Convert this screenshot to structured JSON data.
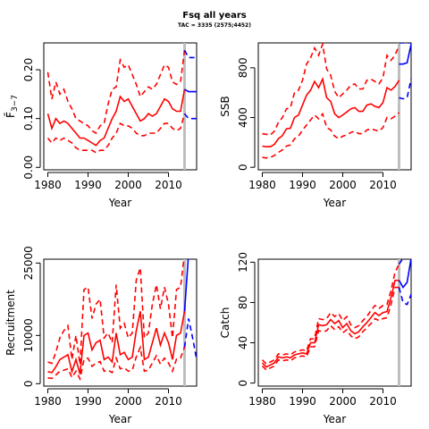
{
  "figure": {
    "title": "Fsq all years",
    "subtitle": "TAC = 3335 (2575;4452)"
  },
  "colors": {
    "history": "#ff0000",
    "forecast": "#0000ff",
    "divider": "#bebebe"
  },
  "chart_data": [
    {
      "type": "line",
      "id": "fbar",
      "xlabel": "Year",
      "ylabel": "F̄",
      "ylabel_sub": "3−7",
      "xlim": [
        1979,
        2017
      ],
      "ylim": [
        -0.005,
        0.255
      ],
      "xticks": [
        1980,
        1990,
        2000,
        2010
      ],
      "yticks": [
        0.0,
        0.1,
        0.2
      ],
      "ytick_labels": [
        "0.00",
        "0.10",
        "0.20"
      ],
      "divider_x": 2014,
      "history": {
        "x": [
          1980,
          1981,
          1982,
          1983,
          1984,
          1985,
          1986,
          1987,
          1988,
          1989,
          1990,
          1991,
          1992,
          1993,
          1994,
          1995,
          1996,
          1997,
          1998,
          1999,
          2000,
          2001,
          2002,
          2003,
          2004,
          2005,
          2006,
          2007,
          2008,
          2009,
          2010,
          2011,
          2012,
          2013,
          2014
        ],
        "median": [
          0.11,
          0.08,
          0.1,
          0.09,
          0.095,
          0.09,
          0.08,
          0.07,
          0.06,
          0.06,
          0.055,
          0.05,
          0.045,
          0.055,
          0.06,
          0.08,
          0.1,
          0.115,
          0.145,
          0.135,
          0.14,
          0.125,
          0.11,
          0.095,
          0.1,
          0.11,
          0.105,
          0.11,
          0.125,
          0.14,
          0.135,
          0.12,
          0.115,
          0.115,
          0.16
        ],
        "lower": [
          0.06,
          0.05,
          0.06,
          0.055,
          0.06,
          0.055,
          0.05,
          0.04,
          0.035,
          0.035,
          0.035,
          0.035,
          0.03,
          0.035,
          0.035,
          0.045,
          0.06,
          0.07,
          0.09,
          0.085,
          0.085,
          0.08,
          0.07,
          0.065,
          0.065,
          0.07,
          0.07,
          0.07,
          0.08,
          0.09,
          0.09,
          0.08,
          0.075,
          0.08,
          0.11
        ],
        "upper": [
          0.195,
          0.14,
          0.175,
          0.15,
          0.16,
          0.135,
          0.12,
          0.1,
          0.095,
          0.09,
          0.085,
          0.075,
          0.07,
          0.085,
          0.09,
          0.13,
          0.16,
          0.165,
          0.22,
          0.205,
          0.21,
          0.19,
          0.17,
          0.145,
          0.155,
          0.165,
          0.16,
          0.17,
          0.19,
          0.21,
          0.205,
          0.175,
          0.17,
          0.175,
          0.24
        ]
      },
      "forecast": {
        "x": [
          2014,
          2015,
          2016,
          2017
        ],
        "median": [
          0.16,
          0.155,
          0.155,
          0.155
        ],
        "lower": [
          0.11,
          0.1,
          0.1,
          0.1
        ],
        "upper": [
          0.24,
          0.225,
          0.225,
          0.225
        ]
      }
    },
    {
      "type": "line",
      "id": "ssb",
      "xlabel": "Year",
      "ylabel": "SSB",
      "ylabel_sub": "",
      "xlim": [
        1979,
        2017
      ],
      "ylim": [
        -20,
        1000
      ],
      "xticks": [
        1980,
        1990,
        2000,
        2010
      ],
      "yticks": [
        0,
        400,
        800
      ],
      "ytick_labels": [
        "0",
        "400",
        "800"
      ],
      "divider_x": 2014,
      "history": {
        "x": [
          1980,
          1981,
          1982,
          1983,
          1984,
          1985,
          1986,
          1987,
          1988,
          1989,
          1990,
          1991,
          1992,
          1993,
          1994,
          1995,
          1996,
          1997,
          1998,
          1999,
          2000,
          2001,
          2002,
          2003,
          2004,
          2005,
          2006,
          2007,
          2008,
          2009,
          2010,
          2011,
          2012,
          2013,
          2014
        ],
        "median": [
          170,
          165,
          165,
          185,
          230,
          255,
          310,
          315,
          400,
          420,
          500,
          580,
          620,
          690,
          640,
          710,
          560,
          530,
          430,
          400,
          420,
          445,
          470,
          480,
          450,
          450,
          500,
          510,
          490,
          480,
          520,
          640,
          620,
          650,
          700
        ],
        "lower": [
          80,
          75,
          80,
          95,
          120,
          140,
          170,
          180,
          230,
          250,
          300,
          340,
          380,
          420,
          390,
          430,
          320,
          300,
          250,
          230,
          250,
          260,
          280,
          290,
          270,
          270,
          300,
          310,
          300,
          290,
          320,
          400,
          390,
          410,
          440
        ],
        "upper": [
          270,
          265,
          260,
          290,
          360,
          400,
          470,
          480,
          600,
          620,
          700,
          830,
          880,
          960,
          900,
          990,
          790,
          740,
          610,
          560,
          590,
          620,
          660,
          670,
          630,
          630,
          700,
          710,
          690,
          670,
          720,
          900,
          860,
          900,
          980
        ]
      },
      "forecast": {
        "x": [
          2014,
          2015,
          2016,
          2017
        ],
        "median": [
          830,
          830,
          840,
          990
        ],
        "lower": [
          560,
          550,
          560,
          710
        ],
        "upper": [
          1000,
          1000,
          1000,
          1000
        ]
      }
    },
    {
      "type": "line",
      "id": "recruitment",
      "xlabel": "Year",
      "ylabel": "Recruitment",
      "ylabel_sub": "",
      "xlim": [
        1979,
        2017
      ],
      "ylim": [
        -500,
        25800
      ],
      "xticks": [
        1980,
        1990,
        2000,
        2010
      ],
      "yticks": [
        0,
        10000,
        25000
      ],
      "ytick_labels": [
        "0",
        "10000",
        "25000"
      ],
      "divider_x": 2014,
      "history": {
        "x": [
          1980,
          1981,
          1982,
          1983,
          1984,
          1985,
          1986,
          1987,
          1988,
          1989,
          1990,
          1991,
          1992,
          1993,
          1994,
          1995,
          1996,
          1997,
          1998,
          1999,
          2000,
          2001,
          2002,
          2003,
          2004,
          2005,
          2006,
          2007,
          2008,
          2009,
          2010,
          2011,
          2012,
          2013,
          2014
        ],
        "median": [
          2500,
          2300,
          3500,
          5000,
          5500,
          6000,
          2500,
          5000,
          2000,
          10000,
          10500,
          7000,
          8500,
          9000,
          5000,
          5500,
          4500,
          10500,
          6000,
          6500,
          5000,
          5500,
          11000,
          15000,
          5000,
          5500,
          8500,
          11500,
          8000,
          10500,
          8500,
          5000,
          10000,
          10500,
          15000
        ],
        "lower": [
          1200,
          1100,
          1800,
          2600,
          2800,
          3100,
          1300,
          2600,
          1000,
          5000,
          5300,
          3600,
          4300,
          4600,
          2600,
          2800,
          2300,
          5300,
          3100,
          3300,
          2600,
          2800,
          5600,
          7500,
          2600,
          2800,
          4300,
          5800,
          4100,
          5300,
          4300,
          2600,
          5100,
          5300,
          7600
        ],
        "upper": [
          4500,
          4200,
          6500,
          9500,
          11000,
          12000,
          5000,
          10000,
          4000,
          19500,
          20000,
          13500,
          16500,
          17500,
          9500,
          10500,
          8500,
          20500,
          11500,
          12500,
          9500,
          10500,
          21500,
          24000,
          9500,
          10500,
          16500,
          20500,
          15500,
          20000,
          16500,
          9500,
          19500,
          20000,
          27000
        ]
      },
      "forecast": {
        "x": [
          2014,
          2015,
          2016,
          2017
        ],
        "median": [
          15000,
          27000,
          27000,
          27000
        ],
        "lower": [
          7600,
          13500,
          9500,
          5000
        ],
        "upper": [
          27000,
          27000,
          27000,
          27000
        ]
      }
    },
    {
      "type": "line",
      "id": "catch",
      "xlabel": "Year",
      "ylabel": "Catch",
      "ylabel_sub": "",
      "xlim": [
        1979,
        2017
      ],
      "ylim": [
        -3,
        123
      ],
      "xticks": [
        1980,
        1990,
        2000,
        2010
      ],
      "yticks": [
        0,
        40,
        80,
        120
      ],
      "ytick_labels": [
        "0",
        "40",
        "80",
        "120"
      ],
      "divider_x": 2014,
      "history": {
        "x": [
          1980,
          1981,
          1982,
          1983,
          1984,
          1985,
          1986,
          1987,
          1988,
          1989,
          1990,
          1991,
          1992,
          1993,
          1994,
          1995,
          1996,
          1997,
          1998,
          1999,
          2000,
          2001,
          2002,
          2003,
          2004,
          2005,
          2006,
          2007,
          2008,
          2009,
          2010,
          2011,
          2012,
          2013,
          2014
        ],
        "median": [
          20,
          16,
          18,
          20,
          26,
          25,
          26,
          25,
          28,
          29,
          30,
          29,
          40,
          40,
          58,
          57,
          58,
          63,
          59,
          62,
          55,
          59,
          52,
          49,
          51,
          56,
          60,
          65,
          70,
          67,
          70,
          71,
          85,
          102,
          102
        ],
        "lower": [
          17,
          13,
          15,
          17,
          23,
          22,
          23,
          22,
          25,
          26,
          27,
          26,
          36,
          36,
          52,
          51,
          52,
          57,
          53,
          56,
          50,
          53,
          47,
          44,
          46,
          51,
          55,
          59,
          64,
          62,
          64,
          65,
          78,
          95,
          95
        ],
        "upper": [
          23,
          19,
          21,
          23,
          29,
          28,
          29,
          28,
          31,
          32,
          33,
          32,
          44,
          44,
          64,
          63,
          64,
          70,
          66,
          69,
          62,
          66,
          58,
          55,
          57,
          62,
          66,
          72,
          77,
          74,
          77,
          78,
          92,
          110,
          118
        ]
      },
      "forecast": {
        "x": [
          2014,
          2015,
          2016,
          2017
        ],
        "median": [
          102,
          95,
          100,
          124
        ],
        "lower": [
          95,
          80,
          78,
          88
        ],
        "upper": [
          118,
          124,
          124,
          124
        ]
      }
    }
  ]
}
